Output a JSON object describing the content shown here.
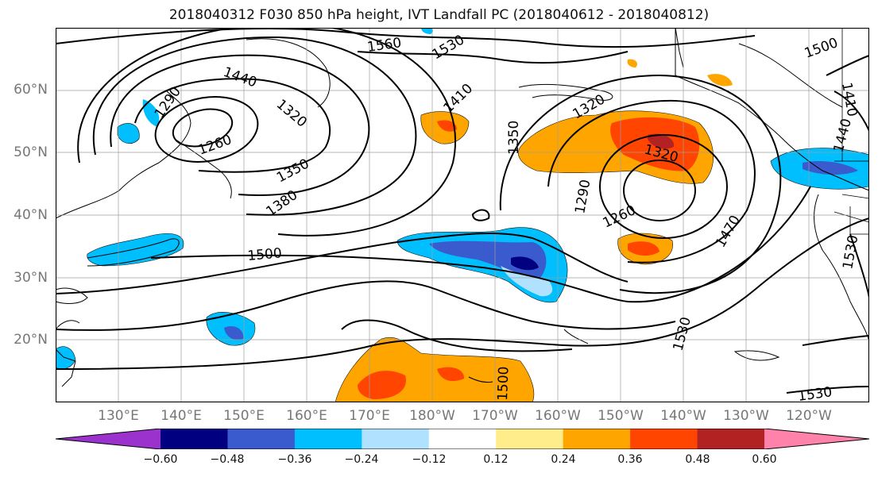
{
  "title": "2018040312 F030 850 hPa height, IVT Landfall PC (2018040612 - 2018040812)",
  "lat_labels": [
    "60°N",
    "50°N",
    "40°N",
    "30°N",
    "20°N"
  ],
  "lon_labels": [
    "130°E",
    "140°E",
    "150°E",
    "160°E",
    "170°E",
    "180°W",
    "170°W",
    "160°W",
    "150°W",
    "140°W",
    "130°W",
    "120°W"
  ],
  "contour_labels": [
    "1560",
    "1530",
    "1500",
    "1440",
    "1410",
    "1410",
    "1290",
    "1320",
    "1260",
    "1350",
    "1380",
    "1320",
    "1320",
    "1350",
    "1290",
    "1260",
    "1470",
    "1500",
    "1530",
    "1500",
    "1530",
    "1440",
    "1530"
  ],
  "colorbar": {
    "colors": [
      "#9b32cd",
      "#000080",
      "#3a5bcd",
      "#00bfff",
      "#b0e2ff",
      "#ffffff",
      "#ffec8b",
      "#ffa500",
      "#ff4500",
      "#b22222",
      "#ff82ab"
    ],
    "tick_labels": [
      "−0.60",
      "−0.48",
      "−0.36",
      "−0.24",
      "−0.12",
      "0.12",
      "0.24",
      "0.36",
      "0.48",
      "0.60"
    ]
  }
}
